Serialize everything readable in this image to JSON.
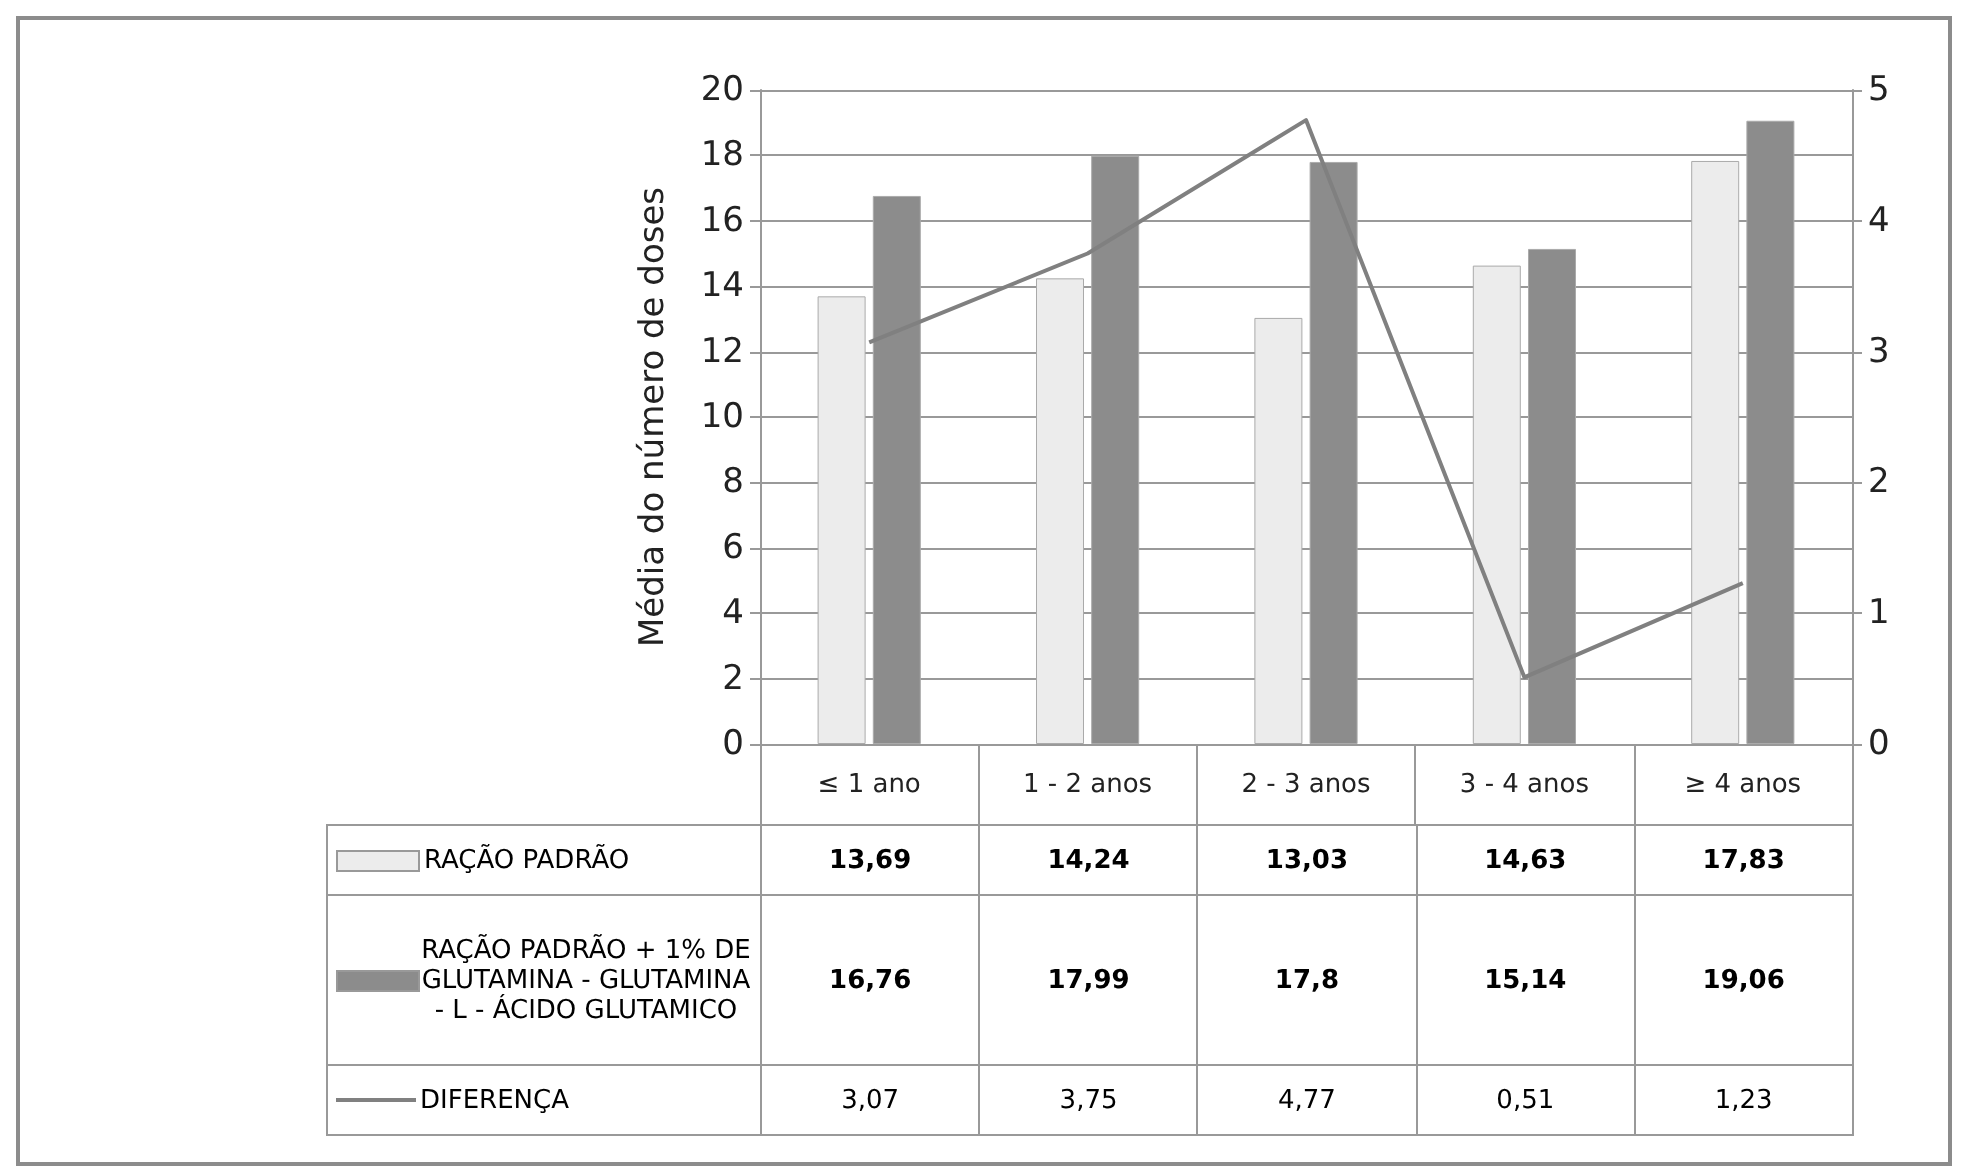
{
  "chart_data": {
    "type": "bar",
    "ylabel": "Média do número de doses",
    "categories": [
      "≤ 1 ano",
      "1 - 2 anos",
      "2 - 3 anos",
      "3 - 4 anos",
      "≥ 4 anos"
    ],
    "series": [
      {
        "name": "RAÇÃO PADRÃO",
        "color": "#ececec",
        "values": [
          13.69,
          14.24,
          13.03,
          14.63,
          17.83
        ],
        "value_labels": [
          "13,69",
          "14,24",
          "13,03",
          "14,63",
          "17,83"
        ]
      },
      {
        "name": "RAÇÃO PADRÃO + 1% DE GLUTAMINA - GLUTAMINA - L - ÁCIDO GLUTAMICO",
        "color": "#8c8c8c",
        "values": [
          16.76,
          17.99,
          17.8,
          15.14,
          19.06
        ],
        "value_labels": [
          "16,76",
          "17,99",
          "17,8",
          "15,14",
          "19,06"
        ]
      },
      {
        "name": "DIFERENÇA",
        "type": "line",
        "axis": "y2",
        "color": "#808080",
        "values": [
          3.07,
          3.75,
          4.77,
          0.51,
          1.23
        ],
        "value_labels": [
          "3,07",
          "3,75",
          "4,77",
          "0,51",
          "1,23"
        ]
      }
    ],
    "ylim": [
      0,
      20
    ],
    "yticks": [
      0,
      2,
      4,
      6,
      8,
      10,
      12,
      14,
      16,
      18,
      20
    ],
    "y2lim": [
      0,
      5
    ],
    "y2ticks": [
      0,
      1,
      2,
      3,
      4,
      5
    ],
    "grid": "y",
    "legend": "bottom",
    "marker": "none"
  }
}
